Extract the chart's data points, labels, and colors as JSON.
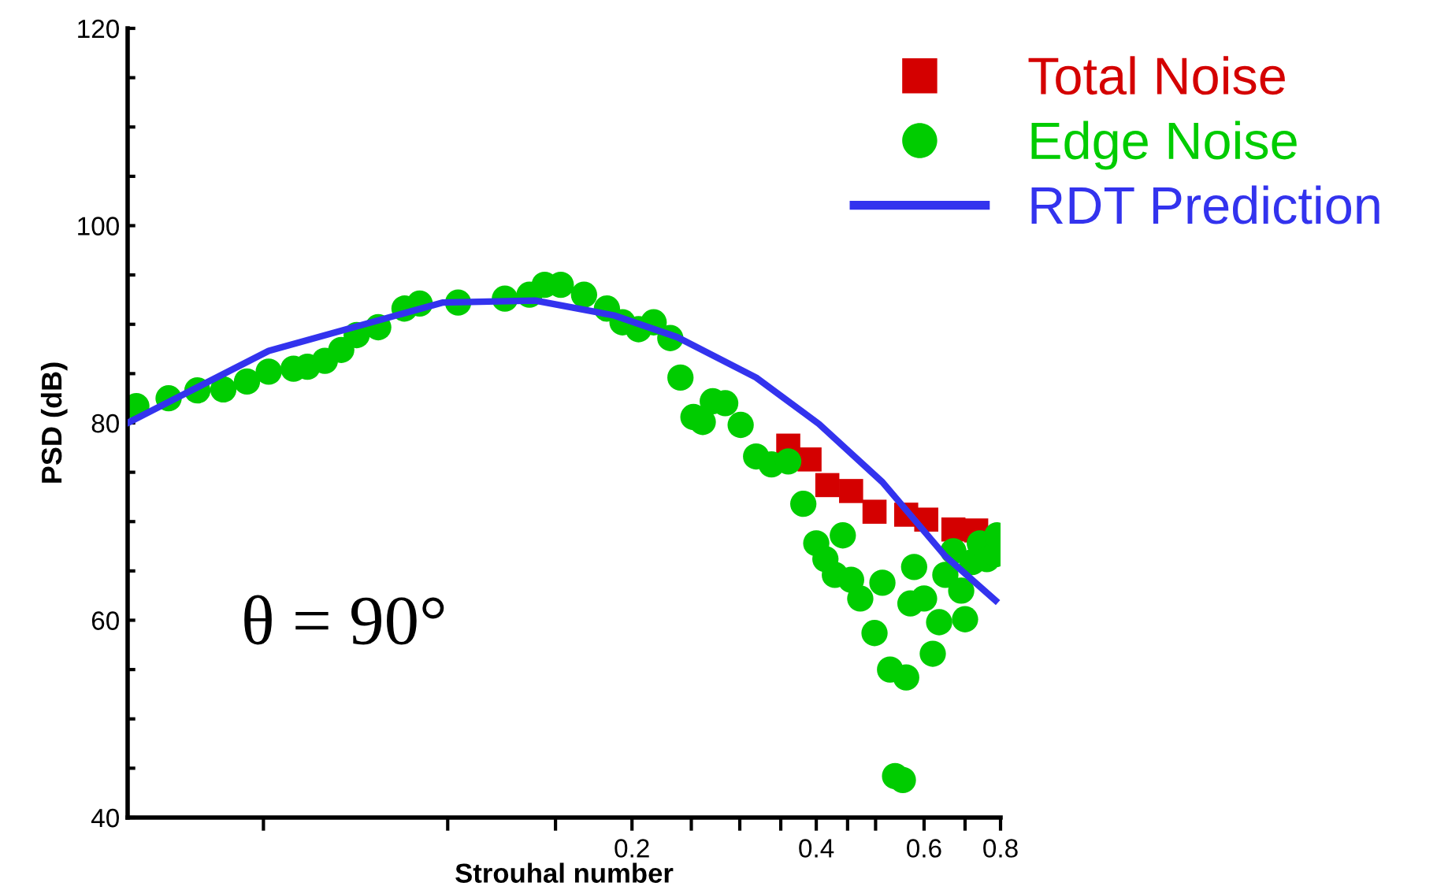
{
  "chart_data": {
    "type": "scatter",
    "xlabel": "Strouhal number",
    "ylabel": "PSD (dB)",
    "log": "x",
    "xlim": [
      0.03,
      0.8
    ],
    "ylim": [
      40,
      120
    ],
    "xticks": [
      {
        "value": 0.05,
        "label": null
      },
      {
        "value": 0.1,
        "label": null
      },
      {
        "value": 0.15,
        "label": null
      },
      0.2,
      {
        "value": 0.25,
        "label": null
      },
      {
        "value": 0.3,
        "label": null
      },
      {
        "value": 0.35,
        "label": null
      },
      0.4,
      {
        "value": 0.45,
        "label": null
      },
      {
        "value": 0.5,
        "label": null
      },
      0.6,
      {
        "value": 0.7,
        "label": null
      },
      0.8
    ],
    "yticks": [
      40,
      {
        "value": 45,
        "label": null
      },
      {
        "value": 50,
        "label": null
      },
      {
        "value": 55,
        "label": null
      },
      60,
      {
        "value": 65,
        "label": null
      },
      {
        "value": 70,
        "label": null
      },
      {
        "value": 75,
        "label": null
      },
      80,
      {
        "value": 85,
        "label": null
      },
      {
        "value": 90,
        "label": null
      },
      {
        "value": 95,
        "label": null
      },
      100,
      {
        "value": 105,
        "label": null
      },
      {
        "value": 110,
        "label": null
      },
      {
        "value": 115,
        "label": null
      },
      120
    ],
    "grid": false,
    "legend": "top right",
    "annotations": [
      "θ = 90°"
    ],
    "series": [
      {
        "name": "Total Noise",
        "marker": "square",
        "color": "#d40000",
        "x": [
          0.36,
          0.39,
          0.417,
          0.456,
          0.498,
          0.561,
          0.605,
          0.67,
          0.73
        ],
        "values": [
          77.7,
          76.3,
          73.7,
          73.1,
          71,
          70.7,
          70.2,
          69.2,
          69.1
        ]
      },
      {
        "name": "Edge Noise",
        "marker": "circle",
        "color": "#00cc00",
        "x": [
          0.031,
          0.035,
          0.039,
          0.043,
          0.047,
          0.051,
          0.056,
          0.059,
          0.063,
          0.067,
          0.071,
          0.077,
          0.085,
          0.09,
          0.104,
          0.124,
          0.136,
          0.144,
          0.153,
          0.167,
          0.182,
          0.193,
          0.205,
          0.217,
          0.231,
          0.24,
          0.252,
          0.261,
          0.271,
          0.284,
          0.301,
          0.319,
          0.338,
          0.36,
          0.381,
          0.4,
          0.414,
          0.429,
          0.442,
          0.456,
          0.472,
          0.498,
          0.513,
          0.528,
          0.538,
          0.554,
          0.561,
          0.57,
          0.578,
          0.6,
          0.62,
          0.635,
          0.65,
          0.67,
          0.69,
          0.7,
          0.719,
          0.74,
          0.76,
          0.785,
          0.79
        ],
        "values": [
          81.7,
          82.5,
          83.3,
          83.4,
          84.2,
          85.2,
          85.5,
          85.7,
          86.3,
          87.4,
          88.9,
          89.7,
          91.6,
          92.1,
          92.2,
          92.6,
          93,
          94,
          94,
          93,
          91.6,
          90.2,
          89.5,
          90.2,
          88.6,
          84.6,
          80.6,
          80.1,
          82.2,
          82,
          79.8,
          76.6,
          75.8,
          76.1,
          71.8,
          67.8,
          66.2,
          64.6,
          68.6,
          64.1,
          62.2,
          58.7,
          63.8,
          55,
          44.2,
          43.8,
          54.2,
          61.7,
          65.4,
          62.2,
          56.6,
          59.8,
          64.6,
          67,
          63,
          60.1,
          65.9,
          67.8,
          66.2,
          66.7,
          68.6
        ]
      },
      {
        "name": "RDT Prediction",
        "type": "line",
        "marker": "none",
        "line_style": "solid",
        "color": "#3333ee",
        "x": [
          0.03,
          0.051,
          0.098,
          0.139,
          0.187,
          0.237,
          0.319,
          0.404,
          0.513,
          0.65,
          0.785
        ],
        "values": [
          80,
          87.3,
          92.2,
          92.4,
          90.9,
          88.7,
          84.6,
          79.9,
          74,
          66.5,
          62
        ]
      }
    ]
  }
}
